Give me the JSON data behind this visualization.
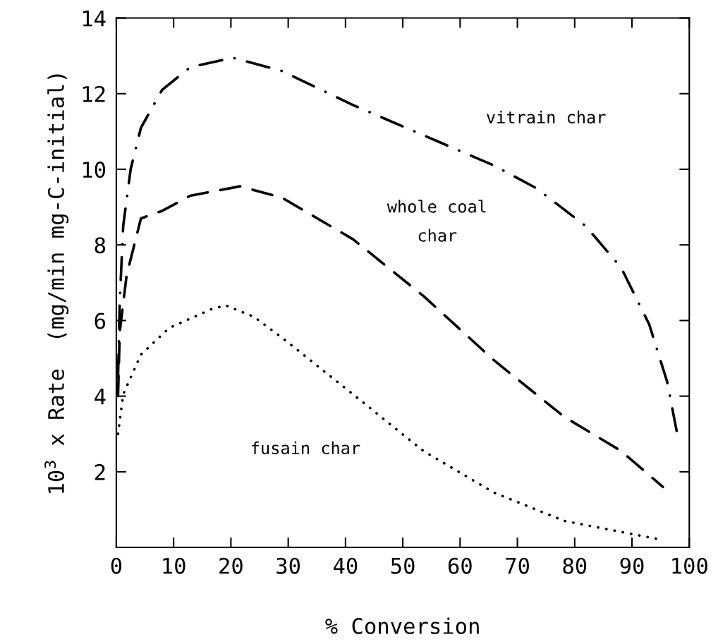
{
  "chart_data": {
    "type": "line",
    "xlabel": "% Conversion",
    "ylabel": "10$^{3}$ x Rate  (mg/min mg-C-initial)",
    "xlim": [
      0,
      100
    ],
    "xticks": [
      0,
      10,
      20,
      30,
      40,
      50,
      60,
      70,
      80,
      90,
      100
    ],
    "ylim": [
      0,
      14
    ],
    "yticks": [
      2,
      4,
      6,
      8,
      10,
      12,
      14
    ],
    "grid": false,
    "marker": "none",
    "series": [
      {
        "name": "vitrain char",
        "color": "#000000",
        "line_style": "dashdot",
        "x": [
          0.3,
          0.6,
          1.2,
          2.5,
          4.3,
          8,
          12.9,
          20.3,
          28.9,
          41.3,
          53.6,
          65.9,
          73.3,
          81.9,
          88.1,
          93,
          96.1,
          97.9
        ],
        "values": [
          4.5,
          6.5,
          8.5,
          10,
          11.1,
          12.1,
          12.7,
          12.95,
          12.6,
          11.7,
          10.9,
          10.1,
          9.5,
          8.5,
          7.4,
          5.9,
          4.4,
          3.0
        ]
      },
      {
        "name": "whole coal\nchar",
        "color": "#000000",
        "line_style": "dashed",
        "x": [
          0.3,
          0.6,
          1.8,
          4.3,
          8,
          12.9,
          21.6,
          28.9,
          41.3,
          53.6,
          65.9,
          78.2,
          88.1,
          95.4
        ],
        "values": [
          4.0,
          5.7,
          7.2,
          8.7,
          8.9,
          9.3,
          9.55,
          9.25,
          8.15,
          6.65,
          4.95,
          3.45,
          2.55,
          1.6
        ]
      },
      {
        "name": "fusain char",
        "color": "#000000",
        "line_style": "dotted",
        "x": [
          0.3,
          1.2,
          4.3,
          9.2,
          16.6,
          19.1,
          24,
          28.9,
          41.3,
          53.6,
          65.9,
          78.2,
          94.2
        ],
        "values": [
          3.0,
          4.05,
          5.1,
          5.8,
          6.3,
          6.4,
          6.1,
          5.55,
          4.05,
          2.55,
          1.45,
          0.7,
          0.23
        ]
      }
    ]
  }
}
